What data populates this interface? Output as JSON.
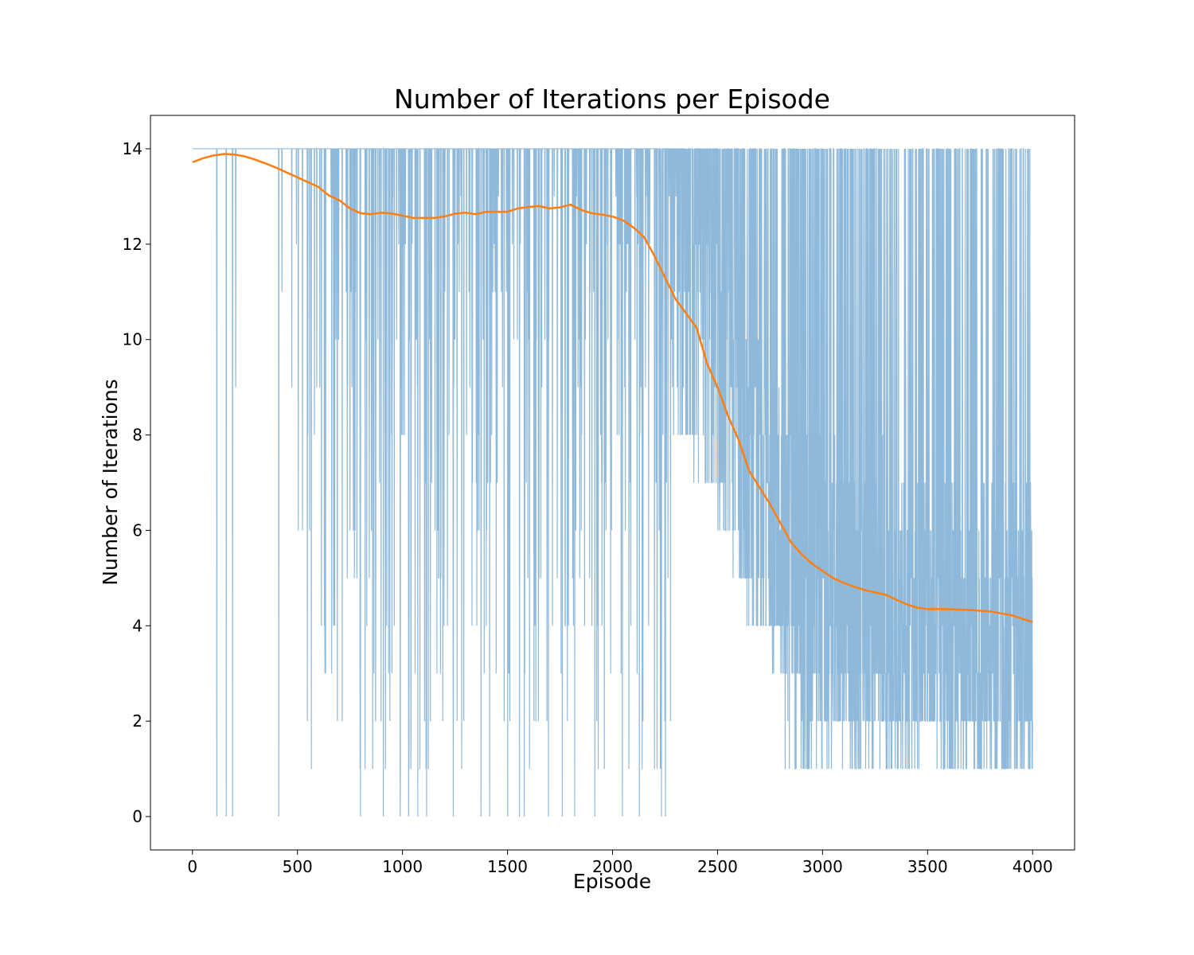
{
  "chart_data": {
    "type": "line",
    "title": "Number of Iterations per Episode",
    "xlabel": "Episode",
    "ylabel": "Number of Iterations",
    "xlim": [
      -200,
      4200
    ],
    "ylim": [
      -0.7,
      14.7
    ],
    "xticks": [
      0,
      500,
      1000,
      1500,
      2000,
      2500,
      3000,
      3500,
      4000
    ],
    "yticks": [
      0,
      2,
      4,
      6,
      8,
      10,
      12,
      14
    ],
    "grid": false,
    "legend": "none",
    "colors": {
      "raw": "#8fb9da",
      "smoothed": "#ff7f0e",
      "axes": "#000000"
    },
    "series": [
      {
        "style": "raw-noisy",
        "x_range": [
          0,
          4000
        ],
        "max_value": 14,
        "min_value": 0,
        "values_note_points": [
          [
            0,
            14
          ],
          [
            115,
            14
          ],
          [
            116,
            0
          ],
          [
            117,
            14
          ],
          [
            160,
            14
          ],
          [
            161,
            0
          ],
          [
            162,
            14
          ],
          [
            190,
            14
          ],
          [
            191,
            0
          ],
          [
            192,
            14
          ],
          [
            205,
            14
          ],
          [
            206,
            9
          ],
          [
            207,
            14
          ],
          [
            410,
            14
          ],
          [
            411,
            0
          ],
          [
            412,
            14
          ],
          [
            425,
            14
          ],
          [
            426,
            11
          ],
          [
            427,
            14
          ]
        ]
      },
      {
        "style": "smoothed",
        "x": [
          0,
          50,
          100,
          150,
          200,
          250,
          300,
          350,
          400,
          450,
          500,
          550,
          600,
          650,
          700,
          750,
          800,
          850,
          900,
          950,
          1000,
          1050,
          1100,
          1150,
          1200,
          1250,
          1300,
          1350,
          1400,
          1450,
          1500,
          1550,
          1600,
          1650,
          1700,
          1750,
          1800,
          1850,
          1900,
          1950,
          2000,
          2050,
          2100,
          2150,
          2200,
          2250,
          2300,
          2350,
          2400,
          2450,
          2500,
          2550,
          2600,
          2650,
          2700,
          2750,
          2800,
          2850,
          2900,
          2950,
          3000,
          3050,
          3100,
          3150,
          3200,
          3250,
          3300,
          3350,
          3400,
          3450,
          3500,
          3600,
          3700,
          3800,
          3900,
          4000
        ],
        "values": [
          13.72,
          13.8,
          13.86,
          13.89,
          13.88,
          13.84,
          13.77,
          13.69,
          13.6,
          13.5,
          13.4,
          13.3,
          13.2,
          13.02,
          12.92,
          12.75,
          12.65,
          12.63,
          12.66,
          12.64,
          12.6,
          12.55,
          12.55,
          12.55,
          12.58,
          12.64,
          12.66,
          12.63,
          12.68,
          12.68,
          12.68,
          12.75,
          12.78,
          12.8,
          12.75,
          12.77,
          12.83,
          12.72,
          12.65,
          12.62,
          12.58,
          12.5,
          12.35,
          12.15,
          11.75,
          11.3,
          10.85,
          10.55,
          10.25,
          9.5,
          9.0,
          8.4,
          7.9,
          7.25,
          6.9,
          6.55,
          6.15,
          5.75,
          5.5,
          5.3,
          5.15,
          5.0,
          4.9,
          4.82,
          4.75,
          4.7,
          4.65,
          4.55,
          4.45,
          4.38,
          4.35,
          4.35,
          4.33,
          4.3,
          4.22,
          4.08
        ]
      }
    ]
  }
}
